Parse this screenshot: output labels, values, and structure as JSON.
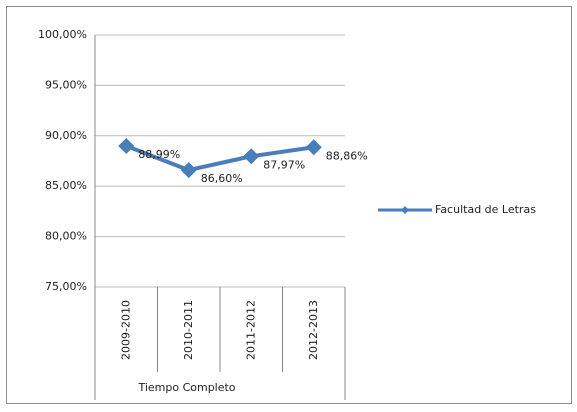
{
  "chart_data": {
    "type": "line",
    "categories": [
      "2009-2010",
      "2010-2011",
      "2011-2012",
      "2012-2013"
    ],
    "axis_group_label": "Tiempo Completo",
    "series": [
      {
        "name": "Facultad de Letras",
        "color": "#4a7ebb",
        "values": [
          88.99,
          86.6,
          87.97,
          88.86
        ],
        "value_labels": [
          "88,99%",
          "86,60%",
          "87,97%",
          "88,86%"
        ]
      }
    ],
    "ylim": [
      75,
      100
    ],
    "yticks": [
      {
        "value": 75,
        "label": "75,00%"
      },
      {
        "value": 80,
        "label": "80,00%"
      },
      {
        "value": 85,
        "label": "85,00%"
      },
      {
        "value": 90,
        "label": "90,00%"
      },
      {
        "value": 95,
        "label": "95,00%"
      },
      {
        "value": 100,
        "label": "100,00%"
      }
    ],
    "grid": true,
    "legend": "right"
  }
}
